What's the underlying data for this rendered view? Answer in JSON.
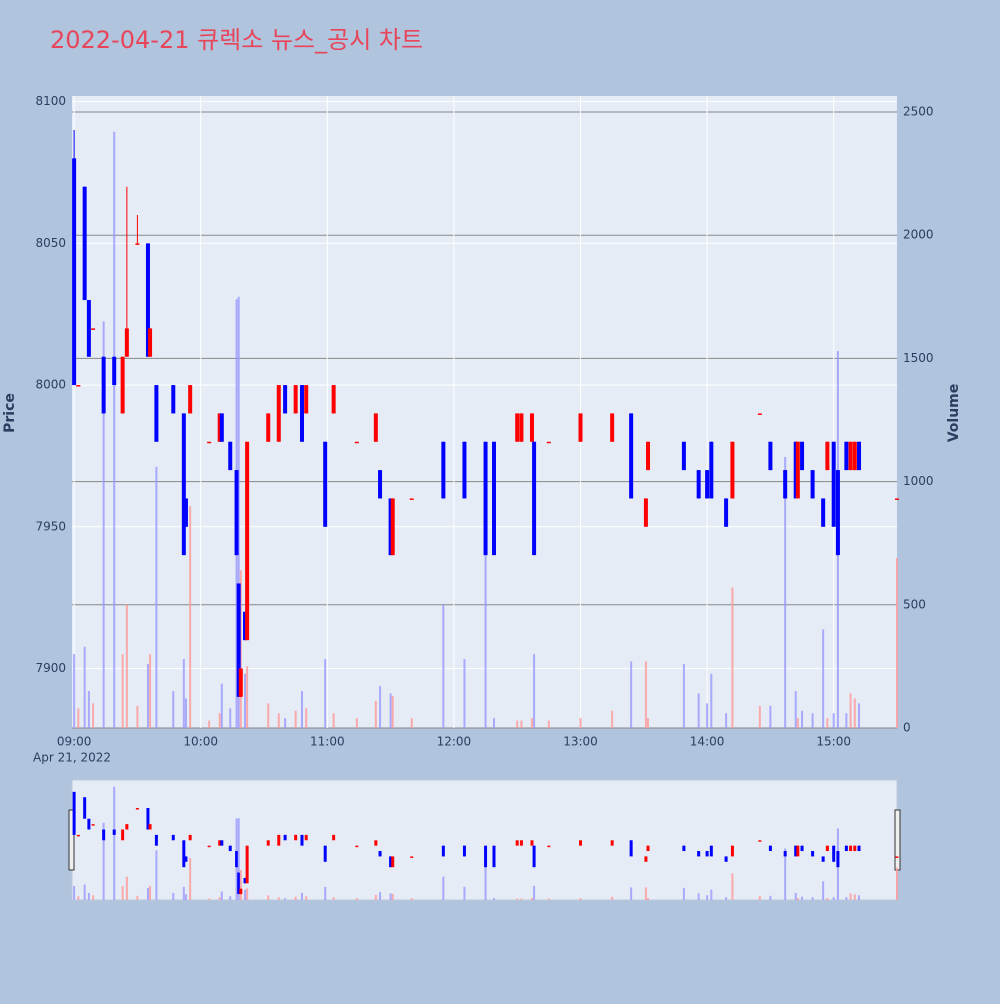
{
  "chart_data": {
    "type": "candlestick",
    "title": "2022-04-21 큐렉소 뉴스_공시 차트",
    "y_label": "Price",
    "y2_label": "Volume",
    "x_date_label": "Apr 21, 2022",
    "increasing_color": "#ff0000",
    "decreasing_color": "#0000ff",
    "volume_increasing_color": "#ff9999",
    "volume_decreasing_color": "#9999ff",
    "xlim": [
      "08:59",
      "15:30"
    ],
    "xticks": [
      "09:00",
      "10:00",
      "11:00",
      "12:00",
      "13:00",
      "14:00",
      "15:00"
    ],
    "ylim": [
      7879,
      8102
    ],
    "yticks": [
      7900,
      7950,
      8000,
      8050,
      8100
    ],
    "y2lim": [
      0,
      2565
    ],
    "y2ticks": [
      0,
      500,
      1000,
      1500,
      2000,
      2500
    ],
    "x": [
      "09:00",
      "09:02",
      "09:05",
      "09:07",
      "09:09",
      "09:14",
      "09:19",
      "09:23",
      "09:25",
      "09:30",
      "09:35",
      "09:36",
      "09:39",
      "09:47",
      "09:52",
      "09:53",
      "09:55",
      "10:04",
      "10:09",
      "10:10",
      "10:14",
      "10:17",
      "10:18",
      "10:19",
      "10:21",
      "10:22",
      "10:32",
      "10:37",
      "10:40",
      "10:45",
      "10:48",
      "10:50",
      "10:59",
      "11:03",
      "11:14",
      "11:23",
      "11:25",
      "11:30",
      "11:31",
      "11:40",
      "11:55",
      "12:05",
      "12:15",
      "12:19",
      "12:30",
      "12:32",
      "12:37",
      "12:38",
      "12:45",
      "13:00",
      "13:15",
      "13:24",
      "13:31",
      "13:32",
      "13:49",
      "13:56",
      "14:00",
      "14:02",
      "14:09",
      "14:12",
      "14:25",
      "14:30",
      "14:37",
      "14:42",
      "14:43",
      "14:45",
      "14:50",
      "14:55",
      "14:57",
      "15:00",
      "15:02",
      "15:06",
      "15:08",
      "15:10",
      "15:12",
      "15:30"
    ],
    "open": [
      8080,
      8000,
      8070,
      8030,
      8020,
      8010,
      8010,
      7990,
      8010,
      8050,
      8050,
      8010,
      8000,
      8000,
      7990,
      7960,
      7990,
      7980,
      7980,
      7990,
      7980,
      7970,
      7930,
      7890,
      7920,
      7910,
      7980,
      7980,
      8000,
      7990,
      8000,
      7990,
      7980,
      7990,
      7980,
      7980,
      7970,
      7960,
      7940,
      7960,
      7980,
      7980,
      7980,
      7980,
      7980,
      7980,
      7980,
      7980,
      7980,
      7980,
      7980,
      7990,
      7950,
      7970,
      7980,
      7970,
      7970,
      7980,
      7960,
      7960,
      7990,
      7980,
      7970,
      7980,
      7960,
      7980,
      7970,
      7960,
      7970,
      7980,
      7970,
      7980,
      7970,
      7970,
      7980,
      7960
    ],
    "high": [
      8090,
      8000,
      8070,
      8030,
      8020,
      8010,
      8010,
      8010,
      8070,
      8060,
      8050,
      8020,
      8000,
      8000,
      7990,
      7960,
      8000,
      7980,
      7990,
      7990,
      7980,
      7970,
      7930,
      7900,
      7920,
      7980,
      7990,
      8000,
      8000,
      8000,
      8000,
      8000,
      7980,
      8000,
      7980,
      7990,
      7970,
      7960,
      7960,
      7960,
      7980,
      7980,
      7980,
      7980,
      7990,
      7990,
      7990,
      7980,
      7980,
      7990,
      7990,
      7990,
      7960,
      7980,
      7980,
      7970,
      7970,
      7980,
      7960,
      7980,
      7990,
      7980,
      7970,
      7980,
      7980,
      7980,
      7970,
      7960,
      7980,
      7980,
      7970,
      7980,
      7980,
      7980,
      7980,
      7960
    ],
    "low": [
      8000,
      8000,
      8030,
      8010,
      8020,
      7990,
      8000,
      7990,
      8010,
      8050,
      8010,
      8010,
      7980,
      7990,
      7940,
      7950,
      7990,
      7980,
      7980,
      7980,
      7970,
      7940,
      7890,
      7890,
      7910,
      7910,
      7980,
      7980,
      7990,
      7990,
      7980,
      7990,
      7950,
      7990,
      7980,
      7980,
      7960,
      7940,
      7940,
      7960,
      7960,
      7960,
      7940,
      7940,
      7980,
      7980,
      7980,
      7940,
      7980,
      7980,
      7980,
      7960,
      7950,
      7970,
      7970,
      7960,
      7960,
      7960,
      7950,
      7960,
      7990,
      7970,
      7960,
      7960,
      7960,
      7970,
      7960,
      7950,
      7970,
      7950,
      7940,
      7970,
      7970,
      7970,
      7970,
      7960
    ],
    "close": [
      8000,
      8000,
      8030,
      8010,
      8020,
      7990,
      8000,
      8010,
      8020,
      8050,
      8010,
      8020,
      7980,
      7990,
      7940,
      7950,
      8000,
      7980,
      7990,
      7980,
      7970,
      7940,
      7890,
      7900,
      7910,
      7980,
      7990,
      8000,
      7990,
      8000,
      7980,
      8000,
      7950,
      8000,
      7980,
      7990,
      7960,
      7940,
      7960,
      7960,
      7960,
      7960,
      7940,
      7940,
      7990,
      7990,
      7990,
      7940,
      7980,
      7990,
      7990,
      7960,
      7960,
      7980,
      7970,
      7960,
      7960,
      7960,
      7950,
      7980,
      7990,
      7970,
      7960,
      7960,
      7980,
      7970,
      7960,
      7950,
      7980,
      7950,
      7940,
      7970,
      7980,
      7980,
      7970,
      7960
    ],
    "volume": [
      300,
      80,
      330,
      150,
      100,
      1650,
      2420,
      300,
      500,
      90,
      260,
      300,
      1060,
      150,
      280,
      120,
      900,
      30,
      60,
      180,
      80,
      1740,
      1750,
      640,
      220,
      250,
      100,
      60,
      40,
      70,
      150,
      80,
      280,
      60,
      40,
      110,
      170,
      140,
      130,
      40,
      500,
      280,
      720,
      40,
      30,
      30,
      40,
      300,
      30,
      40,
      70,
      270,
      270,
      40,
      260,
      140,
      100,
      220,
      60,
      570,
      90,
      90,
      1100,
      150,
      40,
      70,
      60,
      400,
      40,
      60,
      1530,
      60,
      140,
      120,
      100,
      690
    ]
  }
}
